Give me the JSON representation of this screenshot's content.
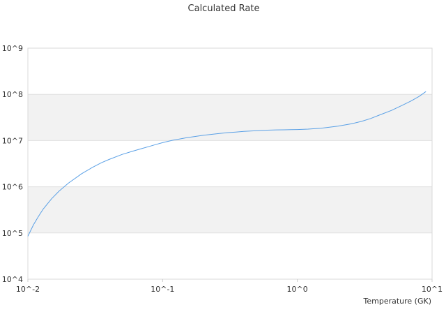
{
  "chart_data": {
    "type": "line",
    "title": "Calculated Rate",
    "xlabel": "Temperature (GK)",
    "ylabel": "",
    "x_scale": "log",
    "y_scale": "log",
    "xlim": [
      0.01,
      10
    ],
    "ylim": [
      10000,
      1000000000
    ],
    "x_ticks": [
      "10^-2",
      "10^-1",
      "10^0",
      "10^1"
    ],
    "y_ticks": [
      "10^4",
      "10^5",
      "10^6",
      "10^7",
      "10^8",
      "10^9"
    ],
    "alternating_bands": true,
    "grid": true,
    "legend": "none",
    "series": [
      {
        "color": "#5aa0e6",
        "x": [
          0.01,
          0.011,
          0.012,
          0.013,
          0.015,
          0.017,
          0.02,
          0.025,
          0.03,
          0.035,
          0.04,
          0.05,
          0.06,
          0.07,
          0.08,
          0.09,
          0.1,
          0.12,
          0.15,
          0.2,
          0.25,
          0.3,
          0.35,
          0.4,
          0.5,
          0.6,
          0.7,
          0.8,
          0.9,
          1.0,
          1.2,
          1.5,
          2.0,
          2.5,
          3.0,
          3.5,
          4.0,
          5.0,
          6.0,
          7.0,
          8.0,
          9.0
        ],
        "y": [
          85000,
          150000,
          230000,
          330000,
          550000,
          800000,
          1200000,
          1900000,
          2600000,
          3300000,
          3900000,
          5000000,
          5900000,
          6700000,
          7500000,
          8300000,
          9000000,
          10200000,
          11500000,
          13000000,
          14000000,
          14800000,
          15300000,
          15800000,
          16400000,
          16800000,
          17000000,
          17100000,
          17200000,
          17300000,
          17700000,
          18500000,
          20500000,
          23000000,
          26000000,
          30000000,
          35000000,
          45000000,
          58000000,
          72000000,
          90000000,
          115000000
        ]
      }
    ]
  }
}
